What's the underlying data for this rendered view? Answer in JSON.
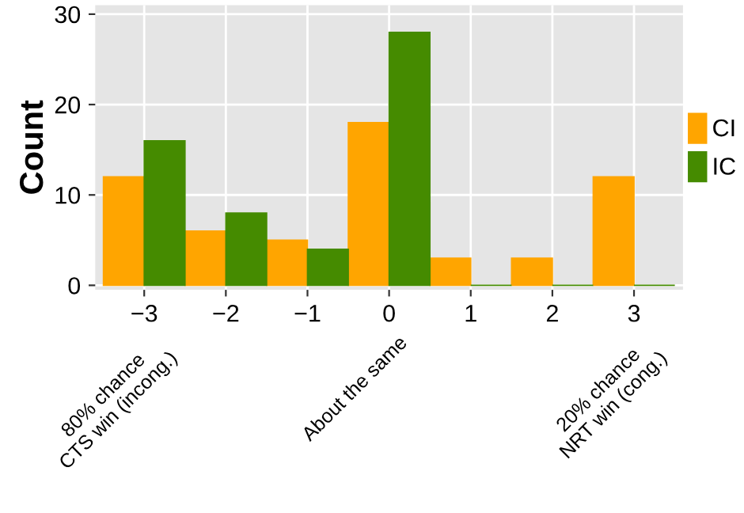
{
  "chart_data": {
    "type": "bar",
    "ylabel": "Count",
    "x": [
      -3,
      -2,
      -1,
      0,
      1,
      2,
      3
    ],
    "xticks": [
      {
        "value": -3,
        "label": "−3"
      },
      {
        "value": -2,
        "label": "−2"
      },
      {
        "value": -1,
        "label": "−1"
      },
      0,
      1,
      2,
      3
    ],
    "xlim": [
      -3.6,
      3.6
    ],
    "ylim": [
      -0.5,
      31
    ],
    "yticks": [
      0,
      10,
      20,
      30
    ],
    "series": [
      {
        "name": "CI",
        "color": "#ffa500",
        "values": [
          12,
          6,
          5,
          18,
          3,
          3,
          12
        ]
      },
      {
        "name": "IC",
        "color": "#458b00",
        "values": [
          16,
          8,
          4,
          28,
          0,
          0,
          0
        ]
      }
    ],
    "annotations": [
      "80% chance\nCTS win (incong.)",
      "About the same",
      "20% chance\nNRT win (cong.)"
    ],
    "grid": true,
    "legend": "right"
  }
}
